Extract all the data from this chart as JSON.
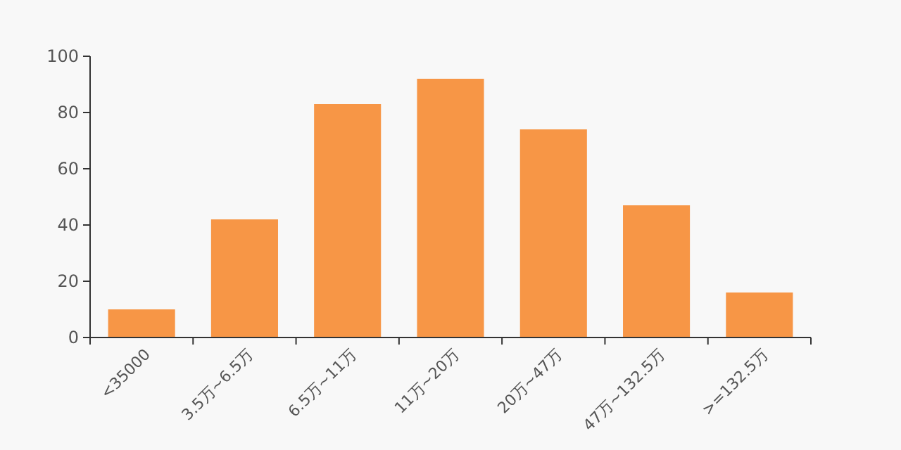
{
  "chart_data": {
    "type": "bar",
    "categories": [
      "<35000",
      "3.5万~6.5万",
      "6.5万~11万",
      "11万~20万",
      "20万~47万",
      "47万~132.5万",
      ">=132.5万"
    ],
    "values": [
      10,
      42,
      83,
      92,
      74,
      47,
      16
    ],
    "color": "#f79646",
    "ylim": [
      0,
      100
    ],
    "yticks": [
      0,
      20,
      40,
      60,
      80,
      100
    ],
    "grid": false
  }
}
